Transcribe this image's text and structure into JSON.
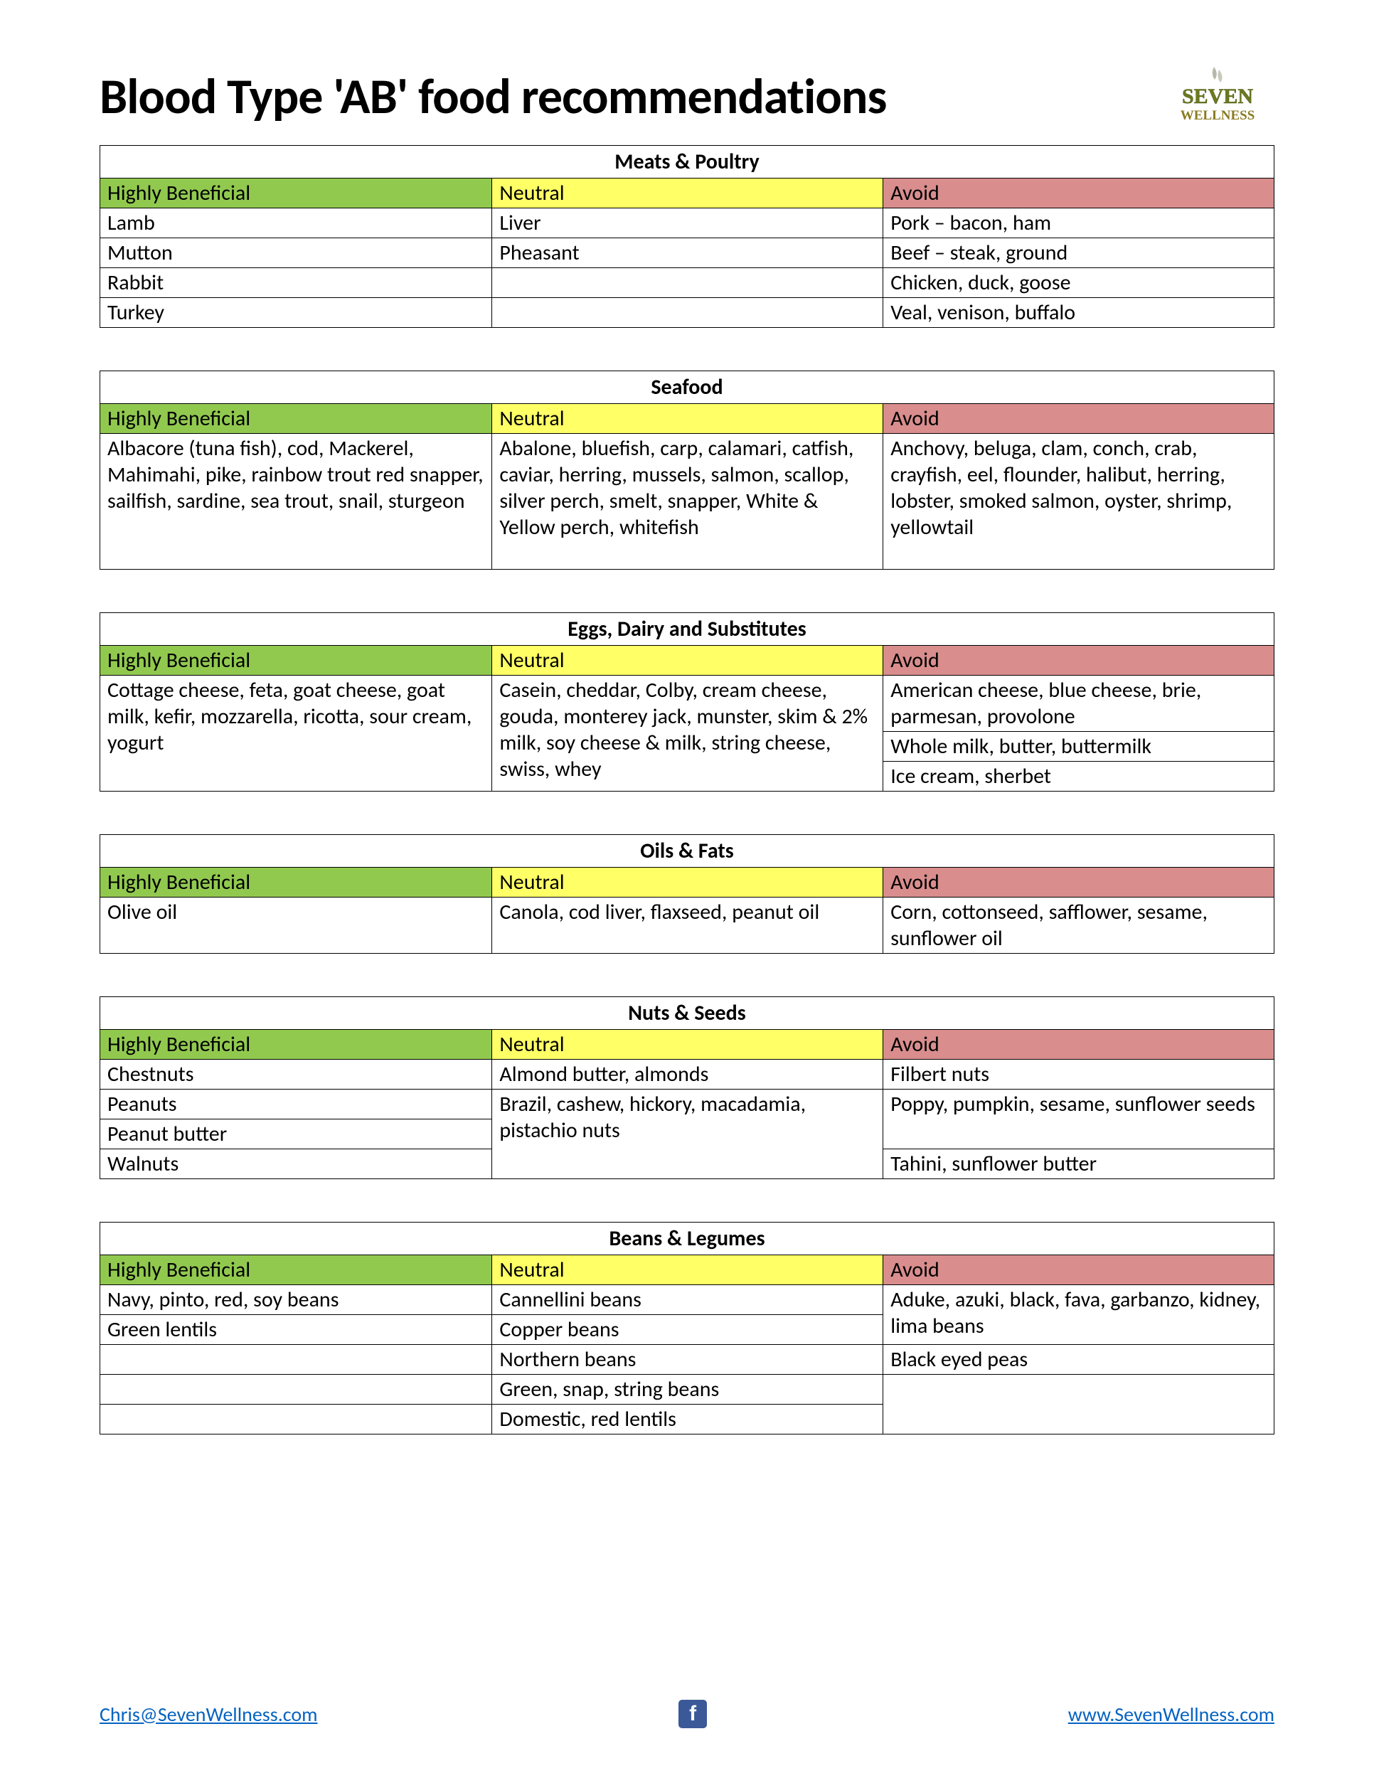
{
  "title": "Blood Type 'AB' food recommendations",
  "logo": {
    "brand_top": "SEVEN",
    "brand_bottom": "WELLNESS",
    "letter_color": "#6b7a1f",
    "text_color": "#8a7a1f"
  },
  "colors": {
    "beneficial_bg": "#91c94f",
    "neutral_bg": "#ffff66",
    "avoid_bg": "#d98d8d",
    "border": "#000000",
    "link": "#0563c1",
    "fb_bg": "#3b5998"
  },
  "column_headers": {
    "beneficial": "Highly Beneficial",
    "neutral": "Neutral",
    "avoid": "Avoid"
  },
  "sections": [
    {
      "title": "Meats & Poultry",
      "rows": [
        [
          "Lamb",
          "Liver",
          "Pork – bacon, ham"
        ],
        [
          "Mutton",
          "Pheasant",
          "Beef – steak, ground"
        ],
        [
          "Rabbit",
          "",
          "Chicken, duck, goose"
        ],
        [
          "Turkey",
          "",
          "Veal, venison, buffalo"
        ]
      ]
    },
    {
      "title": "Seafood",
      "rows": [
        [
          "Albacore (tuna fish), cod, Mackerel, Mahimahi, pike, rainbow trout red snapper, sailfish, sardine, sea trout, snail, sturgeon",
          "Abalone, bluefish, carp, calamari, catfish, caviar, herring, mussels, salmon, scallop, silver perch, smelt, snapper, White & Yellow perch, whitefish",
          "Anchovy, beluga, clam, conch, crab, crayfish, eel, flounder, halibut, herring, lobster, smoked salmon, oyster, shrimp, yellowtail"
        ]
      ],
      "tall": true
    },
    {
      "title": "Eggs, Dairy and Substitutes",
      "layout": "dairy",
      "beneficial": "Cottage cheese, feta, goat cheese, goat milk, kefir, mozzarella, ricotta, sour cream, yogurt",
      "neutral": "Casein, cheddar, Colby, cream cheese, gouda, monterey jack, munster, skim & 2% milk, soy cheese & milk, string cheese, swiss, whey",
      "avoid_rows": [
        "American cheese, blue cheese, brie, parmesan, provolone",
        "Whole milk, butter, buttermilk",
        "Ice cream, sherbet"
      ]
    },
    {
      "title": "Oils & Fats",
      "rows": [
        [
          "Olive oil",
          "Canola, cod liver, flaxseed, peanut oil",
          "Corn, cottonseed, safflower, sesame, sunflower oil"
        ]
      ]
    },
    {
      "title": "Nuts & Seeds",
      "layout": "nuts",
      "col1": [
        "Chestnuts",
        "Peanuts",
        "Peanut butter",
        "Walnuts"
      ],
      "col2_rows": [
        "Almond butter, almonds",
        "Brazil, cashew, hickory, macadamia, pistachio nuts"
      ],
      "col3_rows": [
        "Filbert nuts",
        "Poppy, pumpkin, sesame, sunflower seeds",
        "Tahini, sunflower butter"
      ]
    },
    {
      "title": "Beans & Legumes",
      "layout": "beans",
      "col1": [
        "Navy, pinto, red, soy beans",
        "Green lentils",
        "",
        "",
        ""
      ],
      "col2": [
        "Cannellini beans",
        "Copper beans",
        "Northern beans",
        "Green, snap, string  beans",
        "Domestic, red lentils"
      ],
      "col3_rows": [
        "Aduke, azuki, black, fava, garbanzo, kidney, lima beans",
        "Black eyed peas"
      ]
    }
  ],
  "footer": {
    "email": "Chris@SevenWellness.com",
    "website": "www.SevenWellness.com"
  }
}
